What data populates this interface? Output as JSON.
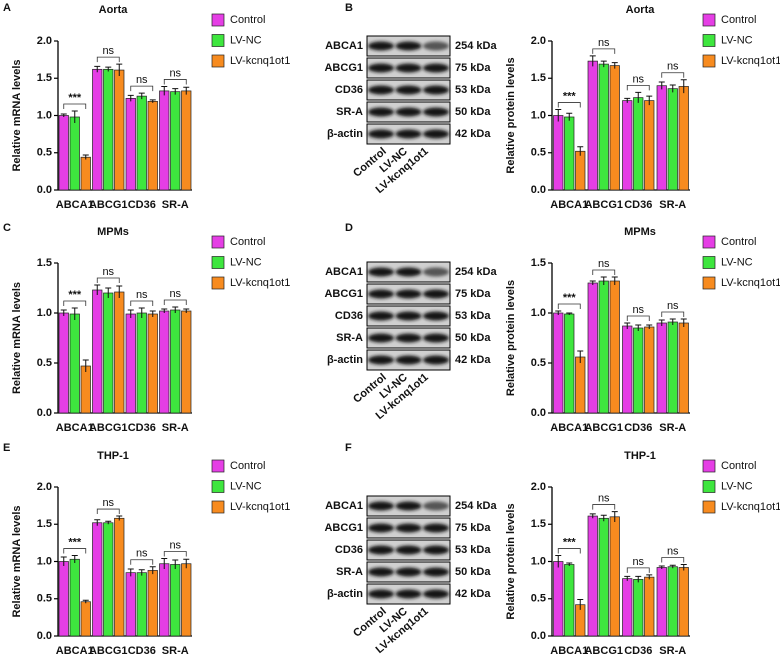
{
  "panels": [
    "A",
    "B",
    "C",
    "D",
    "E",
    "F"
  ],
  "blots": [
    {
      "proteins": [
        "ABCA1",
        "ABCG1",
        "CD36",
        "SR-A",
        "β-actin"
      ],
      "sizes": [
        "254 kDa",
        "75 kDa",
        "53 kDa",
        "50 kDa",
        "42 kDa"
      ],
      "lanes": [
        "Control",
        "LV-NC",
        "LV-kcnq1ot1"
      ]
    },
    {
      "proteins": [
        "ABCA1",
        "ABCG1",
        "CD36",
        "SR-A",
        "β-actin"
      ],
      "sizes": [
        "254 kDa",
        "75 kDa",
        "53 kDa",
        "50 kDa",
        "42 kDa"
      ],
      "lanes": [
        "Control",
        "LV-NC",
        "LV-kcnq1ot1"
      ]
    },
    {
      "proteins": [
        "ABCA1",
        "ABCG1",
        "CD36",
        "SR-A",
        "β-actin"
      ],
      "sizes": [
        "254 kDa",
        "75 kDa",
        "53 kDa",
        "50 kDa",
        "42 kDa"
      ],
      "lanes": [
        "Control",
        "LV-NC",
        "LV-kcnq1ot1"
      ]
    }
  ],
  "chart_data": [
    {
      "type": "bar",
      "title": "Aorta",
      "y_label": "Relative mRNA levels",
      "categories": [
        "ABCA1",
        "ABCG1",
        "CD36",
        "SR-A"
      ],
      "series": [
        {
          "name": "Control",
          "color": "#e53ee5",
          "values": [
            1.0,
            1.62,
            1.23,
            1.33
          ],
          "errors": [
            0.02,
            0.04,
            0.04,
            0.06
          ]
        },
        {
          "name": "LV-NC",
          "color": "#3ee63e",
          "values": [
            0.98,
            1.62,
            1.26,
            1.32
          ],
          "errors": [
            0.08,
            0.03,
            0.04,
            0.04
          ]
        },
        {
          "name": "LV-kcnq1ot1",
          "color": "#f78b1f",
          "values": [
            0.44,
            1.61,
            1.19,
            1.33
          ],
          "errors": [
            0.03,
            0.08,
            0.02,
            0.05
          ]
        }
      ],
      "significance": [
        "***",
        "ns",
        "ns",
        "ns"
      ],
      "ylim": [
        0,
        2
      ],
      "yticks": [
        {
          "value": 0,
          "label": "0.0"
        },
        0.5,
        {
          "value": 1,
          "label": "1.0"
        },
        1.5,
        {
          "value": 2,
          "label": "2.0"
        }
      ]
    },
    {
      "type": "bar",
      "title": "Aorta",
      "y_label": "Relative protein levels",
      "categories": [
        "ABCA1",
        "ABCG1",
        "CD36",
        "SR-A"
      ],
      "series": [
        {
          "name": "Control",
          "color": "#e53ee5",
          "values": [
            1.0,
            1.73,
            1.2,
            1.4
          ],
          "errors": [
            0.08,
            0.07,
            0.03,
            0.05
          ]
        },
        {
          "name": "LV-NC",
          "color": "#3ee63e",
          "values": [
            0.98,
            1.69,
            1.24,
            1.36
          ],
          "errors": [
            0.05,
            0.04,
            0.07,
            0.05
          ]
        },
        {
          "name": "LV-kcnq1ot1",
          "color": "#f78b1f",
          "values": [
            0.52,
            1.67,
            1.2,
            1.39
          ],
          "errors": [
            0.06,
            0.04,
            0.06,
            0.09
          ]
        }
      ],
      "significance": [
        "***",
        "ns",
        "ns",
        "ns"
      ],
      "ylim": [
        0,
        2
      ],
      "yticks": [
        {
          "value": 0,
          "label": "0.0"
        },
        0.5,
        {
          "value": 1,
          "label": "1.0"
        },
        1.5,
        {
          "value": 2,
          "label": "2.0"
        }
      ]
    },
    {
      "type": "bar",
      "title": "MPMs",
      "y_label": "Relative mRNA levels",
      "categories": [
        "ABCA1",
        "ABCG1",
        "CD36",
        "SR-A"
      ],
      "series": [
        {
          "name": "Control",
          "color": "#e53ee5",
          "values": [
            1.0,
            1.23,
            0.99,
            1.02
          ],
          "errors": [
            0.03,
            0.05,
            0.04,
            0.02
          ]
        },
        {
          "name": "LV-NC",
          "color": "#3ee63e",
          "values": [
            0.99,
            1.2,
            1.0,
            1.03
          ],
          "errors": [
            0.06,
            0.05,
            0.05,
            0.03
          ]
        },
        {
          "name": "LV-kcnq1ot1",
          "color": "#f78b1f",
          "values": [
            0.47,
            1.21,
            0.99,
            1.02
          ],
          "errors": [
            0.06,
            0.06,
            0.03,
            0.02
          ]
        }
      ],
      "significance": [
        "***",
        "ns",
        "ns",
        "ns"
      ],
      "ylim": [
        0,
        1.5
      ],
      "yticks": [
        {
          "value": 0,
          "label": "0.0"
        },
        0.5,
        {
          "value": 1,
          "label": "1.0"
        },
        1.5
      ]
    },
    {
      "type": "bar",
      "title": "MPMs",
      "y_label": "Relative protein levels",
      "categories": [
        "ABCA1",
        "ABCG1",
        "CD36",
        "SR-A"
      ],
      "series": [
        {
          "name": "Control",
          "color": "#e53ee5",
          "values": [
            1.0,
            1.3,
            0.87,
            0.9
          ],
          "errors": [
            0.02,
            0.02,
            0.03,
            0.03
          ]
        },
        {
          "name": "LV-NC",
          "color": "#3ee63e",
          "values": [
            0.99,
            1.32,
            0.85,
            0.91
          ],
          "errors": [
            0.01,
            0.04,
            0.03,
            0.03
          ]
        },
        {
          "name": "LV-kcnq1ot1",
          "color": "#f78b1f",
          "values": [
            0.56,
            1.32,
            0.86,
            0.9
          ],
          "errors": [
            0.06,
            0.04,
            0.02,
            0.04
          ]
        }
      ],
      "significance": [
        "***",
        "ns",
        "ns",
        "ns"
      ],
      "ylim": [
        0,
        1.5
      ],
      "yticks": [
        {
          "value": 0,
          "label": "0.0"
        },
        0.5,
        {
          "value": 1,
          "label": "1.0"
        },
        1.5
      ]
    },
    {
      "type": "bar",
      "title": "THP-1",
      "y_label": "Relative mRNA levels",
      "categories": [
        "ABCA1",
        "ABCG1",
        "CD36",
        "SR-A"
      ],
      "series": [
        {
          "name": "Control",
          "color": "#e53ee5",
          "values": [
            1.0,
            1.52,
            0.85,
            0.97
          ],
          "errors": [
            0.06,
            0.04,
            0.05,
            0.07
          ]
        },
        {
          "name": "LV-NC",
          "color": "#3ee63e",
          "values": [
            1.03,
            1.52,
            0.85,
            0.96
          ],
          "errors": [
            0.05,
            0.02,
            0.04,
            0.06
          ]
        },
        {
          "name": "LV-kcnq1ot1",
          "color": "#f78b1f",
          "values": [
            0.46,
            1.58,
            0.88,
            0.97
          ],
          "errors": [
            0.02,
            0.03,
            0.05,
            0.06
          ]
        }
      ],
      "significance": [
        "***",
        "ns",
        "ns",
        "ns"
      ],
      "ylim": [
        0,
        2
      ],
      "yticks": [
        {
          "value": 0,
          "label": "0.0"
        },
        0.5,
        {
          "value": 1,
          "label": "1.0"
        },
        1.5,
        {
          "value": 2,
          "label": "2.0"
        }
      ]
    },
    {
      "type": "bar",
      "title": "THP-1",
      "y_label": "Relative protein levels",
      "categories": [
        "ABCA1",
        "ABCG1",
        "CD36",
        "SR-A"
      ],
      "series": [
        {
          "name": "Control",
          "color": "#e53ee5",
          "values": [
            1.0,
            1.61,
            0.77,
            0.92
          ],
          "errors": [
            0.08,
            0.03,
            0.03,
            0.02
          ]
        },
        {
          "name": "LV-NC",
          "color": "#3ee63e",
          "values": [
            0.96,
            1.58,
            0.76,
            0.93
          ],
          "errors": [
            0.02,
            0.04,
            0.04,
            0.02
          ]
        },
        {
          "name": "LV-kcnq1ot1",
          "color": "#f78b1f",
          "values": [
            0.42,
            1.6,
            0.79,
            0.92
          ],
          "errors": [
            0.07,
            0.07,
            0.03,
            0.04
          ]
        }
      ],
      "significance": [
        "***",
        "ns",
        "ns",
        "ns"
      ],
      "ylim": [
        0,
        2
      ],
      "yticks": [
        {
          "value": 0,
          "label": "0.0"
        },
        0.5,
        {
          "value": 1,
          "label": "1.0"
        },
        1.5,
        {
          "value": 2,
          "label": "2.0"
        }
      ]
    }
  ]
}
